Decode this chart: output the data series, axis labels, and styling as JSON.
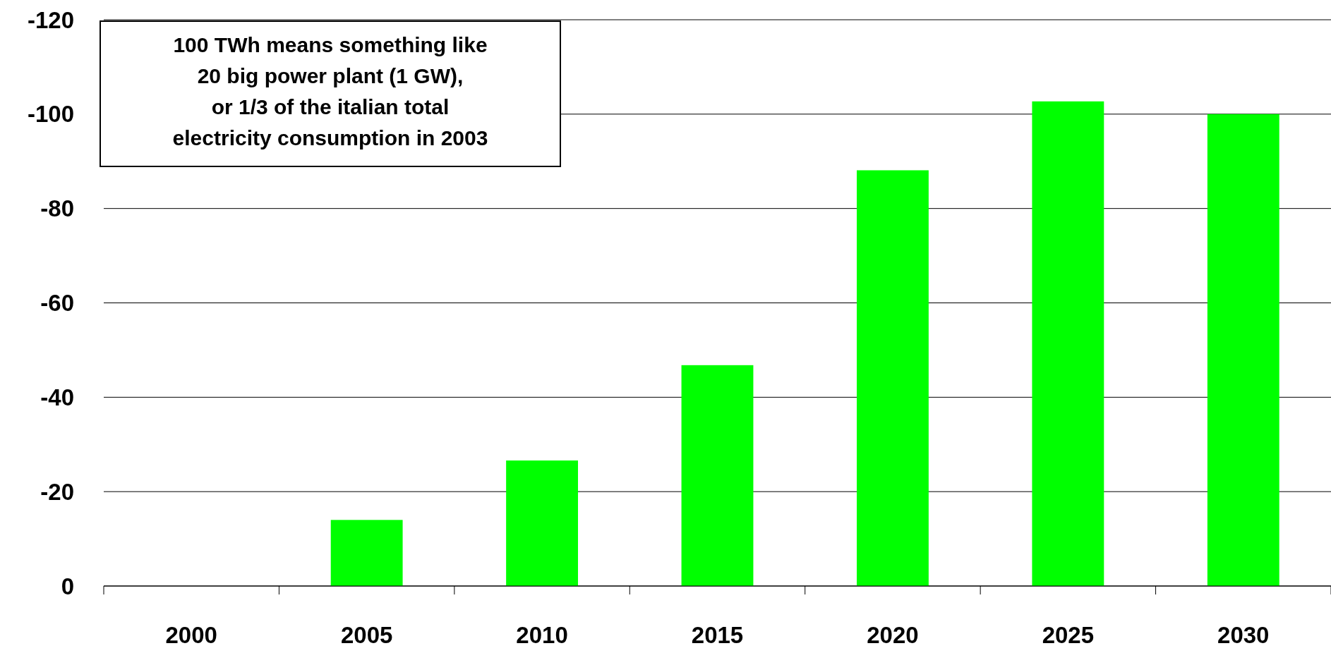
{
  "chart_data": {
    "type": "bar",
    "categories": [
      "2000",
      "2005",
      "2010",
      "2015",
      "2020",
      "2025",
      "2030"
    ],
    "values": [
      0,
      -14,
      -26.6,
      -46.8,
      -88.1,
      -102.7,
      -100
    ],
    "color": "#00ff00",
    "ylim": [
      0,
      -120
    ],
    "yticks": [
      0,
      -20,
      -40,
      -60,
      -80,
      -100,
      -120
    ],
    "grid": "y",
    "annotations": [
      "100 TWh means something like\n20 big power plant (1 GW),\nor 1/3 of the italian total\nelectricity consumption in 2003"
    ]
  }
}
